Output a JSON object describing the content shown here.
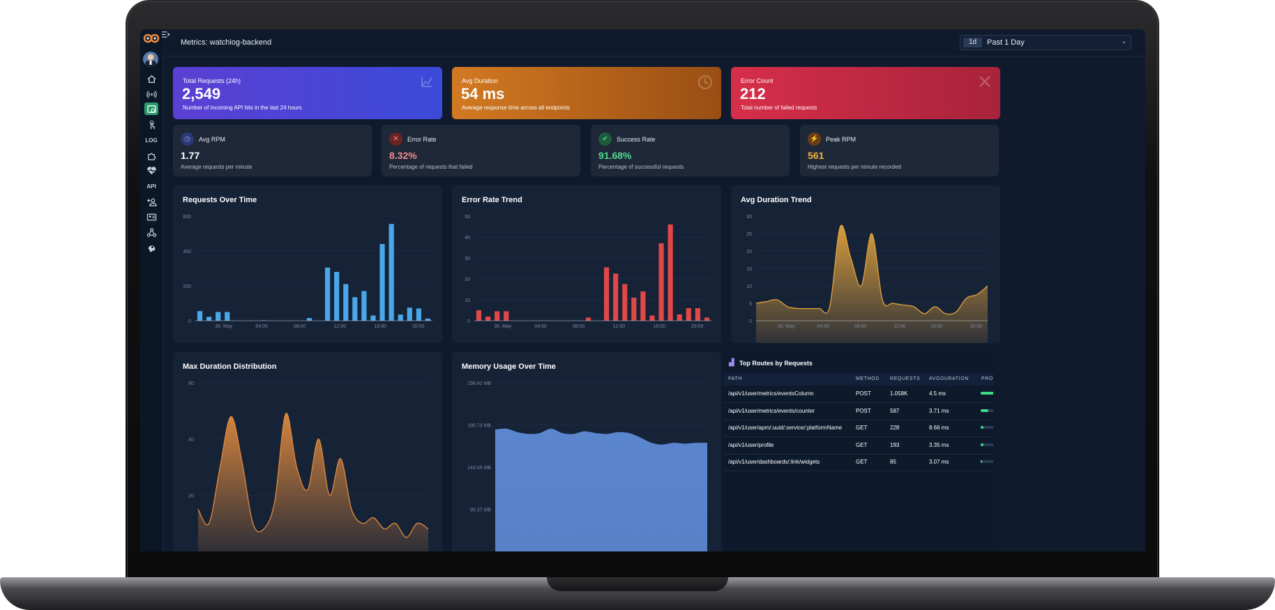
{
  "header": {
    "title": "Metrics: watchlog-backend",
    "range_badge": "1d",
    "range_label": "Past 1 Day"
  },
  "kpis": [
    {
      "label": "Total Requests (24h)",
      "value": "2,549",
      "sub": "Number of incoming API hits in the last 24 hours",
      "icon": "chart-icon"
    },
    {
      "label": "Avg Duration",
      "value": "54 ms",
      "sub": "Average response time across all endpoints",
      "icon": "clock-icon"
    },
    {
      "label": "Error Count",
      "value": "212",
      "sub": "Total number of failed requests",
      "icon": "x-icon"
    }
  ],
  "stats": [
    {
      "label": "Avg RPM",
      "value": "1.77",
      "sub": "Average requests per minute",
      "color": "#ffffff",
      "icon": "clock-icon"
    },
    {
      "label": "Error Rate",
      "value": "8.32%",
      "sub": "Percentage of requests that failed",
      "color": "#f08a8a",
      "icon": "x-icon"
    },
    {
      "label": "Success Rate",
      "value": "91.68%",
      "sub": "Percentage of successful requests",
      "color": "#52d88a",
      "icon": "check-icon"
    },
    {
      "label": "Peak RPM",
      "value": "561",
      "sub": "Highest requests per minute recorded",
      "color": "#f5b03c",
      "icon": "peak-icon"
    }
  ],
  "chart_data": [
    {
      "type": "bar",
      "title": "Requests Over Time",
      "color": "#4aa8e8",
      "ylim": [
        0,
        600
      ],
      "yticks": [
        "0",
        "200",
        "400",
        "600"
      ],
      "xticks": [
        "30. May",
        "04:00",
        "08:00",
        "12:00",
        "16:00",
        "20:00"
      ],
      "values": [
        55,
        22,
        50,
        50,
        0,
        0,
        0,
        2,
        0,
        0,
        0,
        0,
        15,
        0,
        305,
        280,
        210,
        135,
        170,
        30,
        440,
        555,
        35,
        75,
        70,
        12
      ]
    },
    {
      "type": "bar",
      "title": "Error Rate Trend",
      "color": "#e04848",
      "ylim": [
        0,
        50
      ],
      "yticks": [
        "0",
        "10",
        "20",
        "30",
        "40",
        "50"
      ],
      "xticks": [
        "30. May",
        "04:00",
        "08:00",
        "12:00",
        "16:00",
        "20:00"
      ],
      "values": [
        5,
        2,
        4.5,
        4.5,
        0,
        0,
        0,
        0,
        0,
        0,
        0,
        0,
        1.5,
        0,
        25.5,
        22.5,
        17.5,
        11,
        14,
        2.5,
        37,
        46,
        3,
        6,
        6,
        1.5
      ]
    },
    {
      "type": "area",
      "title": "Avg Duration Trend",
      "color": "#e2a33d",
      "ylim": [
        0,
        30
      ],
      "yticks": [
        "0",
        "5",
        "10",
        "15",
        "20",
        "25",
        "30"
      ],
      "xticks": [
        "30. May",
        "04:00",
        "08:00",
        "12:00",
        "16:00",
        "20:00"
      ],
      "values": [
        5,
        5.5,
        6,
        4,
        3.5,
        3.5,
        3.5,
        4,
        27,
        18,
        10,
        25,
        6,
        5,
        4.5,
        4,
        2,
        4,
        2,
        2.5,
        6.5,
        7.5,
        10
      ]
    },
    {
      "type": "area",
      "title": "Max Duration Distribution",
      "color": "#e08a3e",
      "ylim": [
        0,
        60
      ],
      "yticks": [
        "20",
        "40",
        "60"
      ],
      "xticks": [],
      "values": [
        15,
        10,
        30,
        48,
        32,
        10,
        8,
        18,
        49,
        30,
        22,
        40,
        20,
        33,
        15,
        10,
        12,
        8,
        10,
        5,
        10,
        8
      ]
    },
    {
      "type": "area",
      "title": "Memory Usage Over Time",
      "color": "#5b86cf",
      "ylim": [
        47.68,
        238.42
      ],
      "yticks": [
        "95.37 MB",
        "143.05 MB",
        "190.73 MB",
        "238.42 MB"
      ],
      "xticks": [],
      "values": [
        185,
        186,
        182,
        180,
        181,
        186,
        181,
        180,
        183,
        181,
        180,
        182,
        181,
        176,
        170,
        168,
        170,
        169,
        170,
        170
      ]
    }
  ],
  "routes": {
    "title": "Top Routes by Requests",
    "columns": [
      "PATH",
      "METHOD",
      "REQUESTS",
      "AVGDURATION",
      "PROG"
    ],
    "rows": [
      {
        "path": "/api/v1/user/metrics/eventsColumn",
        "method": "POST",
        "requests": "1.058K",
        "avg": "4.5 ms",
        "share": 1.0
      },
      {
        "path": "/api/v1/user/metrics/events/counter",
        "method": "POST",
        "requests": "587",
        "avg": "3.71 ms",
        "share": 0.55
      },
      {
        "path": "/api/v1/user/apm/:uuid/:service/:platformName",
        "method": "GET",
        "requests": "228",
        "avg": "8.66 ms",
        "share": 0.22
      },
      {
        "path": "/api/v1/user/profile",
        "method": "GET",
        "requests": "193",
        "avg": "3.35 ms",
        "share": 0.18
      },
      {
        "path": "/api/v1/user/dashboards/:link/widgets",
        "method": "GET",
        "requests": "85",
        "avg": "3.07 ms",
        "share": 0.08
      }
    ]
  },
  "sidebar": {
    "logo_text": "oo",
    "items": [
      "home-icon",
      "signal-icon",
      "dashboard-icon",
      "touch-icon",
      "log-icon",
      "puzzle-icon",
      "heartbeat-icon",
      "api-icon",
      "add-user-icon",
      "id-card-icon",
      "webhook-icon",
      "brain-icon"
    ],
    "log_text": "LOG",
    "api_text": "API"
  }
}
